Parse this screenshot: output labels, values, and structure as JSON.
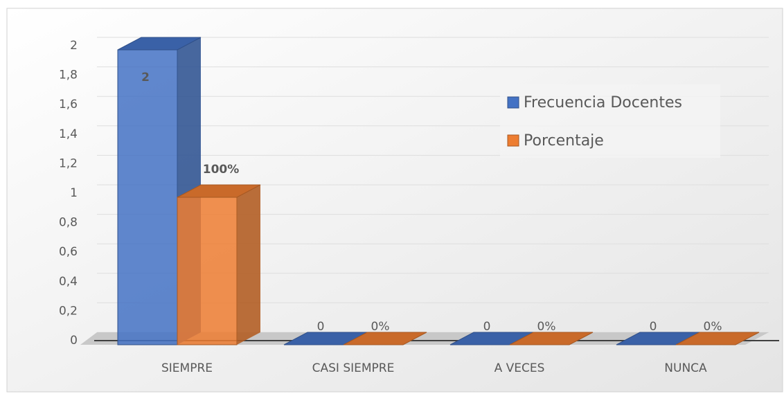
{
  "chart_data": {
    "type": "bar3d",
    "categories": [
      "SIEMPRE",
      "CASI SIEMPRE",
      "A VECES",
      "NUNCA"
    ],
    "series": [
      {
        "name": "Frecuencia Docentes",
        "color": "#4472c4",
        "values": [
          2,
          0,
          0,
          0
        ]
      },
      {
        "name": "Porcentaje",
        "color": "#ed7d31",
        "values": [
          1,
          0,
          0,
          0
        ],
        "value_labels": [
          "100%",
          "0%",
          "0%",
          "0%"
        ]
      }
    ],
    "ylim": [
      0,
      2
    ],
    "yticks": [
      0,
      {
        "value": 0.2,
        "label": "0,2"
      },
      {
        "value": 0.4,
        "label": "0,4"
      },
      {
        "value": 0.6,
        "label": "0,6"
      },
      {
        "value": 0.8,
        "label": "0,8"
      },
      1,
      {
        "value": 1.2,
        "label": "1,2"
      },
      {
        "value": 1.4,
        "label": "1,4"
      },
      {
        "value": 1.6,
        "label": "1,6"
      },
      {
        "value": 1.8,
        "label": "1,8"
      },
      2
    ],
    "grid": true,
    "legend": "right"
  }
}
